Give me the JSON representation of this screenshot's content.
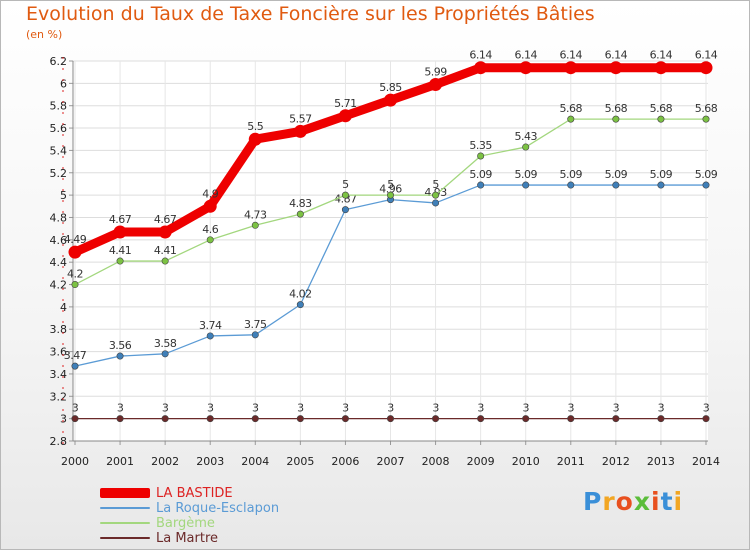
{
  "chart_data": {
    "type": "line",
    "title": "Evolution du Taux de Taxe Foncière sur les Propriétés Bâties",
    "ylabel": "(en %)",
    "xlabel": "",
    "x": [
      "2000",
      "2001",
      "2002",
      "2003",
      "2004",
      "2005",
      "2006",
      "2007",
      "2008",
      "2009",
      "2010",
      "2011",
      "2012",
      "2013",
      "2014"
    ],
    "ylim": [
      2.8,
      6.2
    ],
    "yticks": [
      2.8,
      3,
      3.2,
      3.4,
      3.6,
      3.8,
      4,
      4.2,
      4.4,
      4.6,
      4.8,
      5,
      5.2,
      5.4,
      5.6,
      5.8,
      6,
      6.2
    ],
    "ytick_labels": [
      "2.8",
      "3",
      "3.2",
      "3.4",
      "3.6",
      "3.8",
      "4",
      "4.2",
      "4.4",
      "4.6",
      "4.8",
      "5",
      "5.2",
      "5.4",
      "5.6",
      "5.8",
      "6",
      "6.2"
    ],
    "grid": true,
    "legend_position": "bottom-left",
    "series": [
      {
        "name": "La Martre",
        "color": "#6b2a2a",
        "values": [
          3,
          3,
          3,
          3,
          3,
          3,
          3,
          3,
          3,
          3,
          3,
          3,
          3,
          3,
          3
        ],
        "labels": [
          "3",
          "3",
          "3",
          "3",
          "3",
          "3",
          "3",
          "3",
          "3",
          "3",
          "3",
          "3",
          "3",
          "3",
          "3"
        ]
      },
      {
        "name": "La Roque-Esclapon",
        "color": "#5b9bd5",
        "marker_color": "#3f7fb8",
        "values": [
          3.47,
          3.56,
          3.58,
          3.74,
          3.75,
          4.02,
          4.87,
          4.96,
          4.93,
          5.09,
          5.09,
          5.09,
          5.09,
          5.09,
          5.09
        ],
        "labels": [
          "3.47",
          "3.56",
          "3.58",
          "3.74",
          "3.75",
          "4.02",
          "4.87",
          "4.96",
          "4.93",
          "5.09",
          "5.09",
          "5.09",
          "5.09",
          "5.09",
          "5.09"
        ]
      },
      {
        "name": "Bargème",
        "color": "#a3d77e",
        "marker_color": "#7cc243",
        "values": [
          4.2,
          4.41,
          4.41,
          4.6,
          4.73,
          4.83,
          5,
          5,
          5,
          5.35,
          5.43,
          5.68,
          5.68,
          5.68,
          5.68
        ],
        "labels": [
          "4.2",
          "4.41",
          "4.41",
          "4.6",
          "4.73",
          "4.83",
          "5",
          "5",
          "5",
          "5.35",
          "5.43",
          "5.68",
          "5.68",
          "5.68",
          "5.68"
        ]
      },
      {
        "name": "LA BASTIDE",
        "color": "#ee0000",
        "values": [
          4.49,
          4.67,
          4.67,
          4.9,
          5.5,
          5.57,
          5.71,
          5.85,
          5.99,
          6.14,
          6.14,
          6.14,
          6.14,
          6.14,
          6.14
        ],
        "labels": [
          "4.49",
          "4.67",
          "4.67",
          "4.9",
          "5.5",
          "5.57",
          "5.71",
          "5.85",
          "5.99",
          "6.14",
          "6.14",
          "6.14",
          "6.14",
          "6.14",
          "6.14"
        ]
      }
    ],
    "legend_order": [
      "LA BASTIDE",
      "La Roque-Esclapon",
      "Bargème",
      "La Martre"
    ]
  },
  "brand": {
    "letters": [
      "P",
      "r",
      "o",
      "x",
      "i",
      "t",
      "i"
    ],
    "colors": [
      "#3a8fd8",
      "#f2a623",
      "#e8501f",
      "#5bbd3a",
      "#e8501f",
      "#3a8fd8",
      "#f2a623"
    ]
  }
}
